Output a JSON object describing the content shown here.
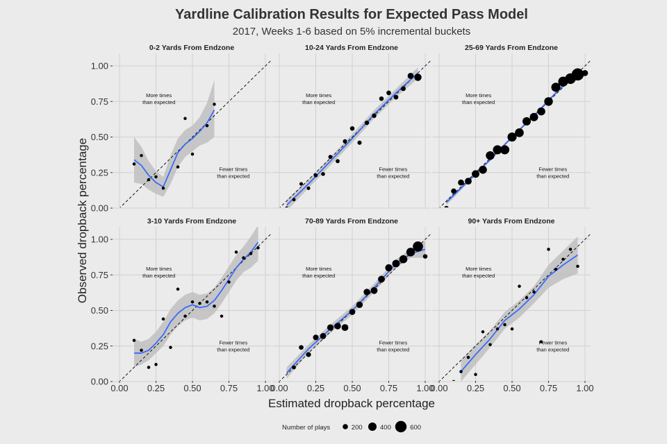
{
  "chart_data": {
    "type": "scatter",
    "title": "Yardline Calibration Results for Expected Pass Model",
    "subtitle": "2017, Weeks 1-6 based on 5% incremental buckets",
    "xlabel": "Estimated dropback percentage",
    "ylabel": "Observed dropback percentage",
    "xlim": [
      0,
      1
    ],
    "ylim": [
      0,
      1
    ],
    "ticks": [
      {
        "value": 0.0,
        "label": "0.00"
      },
      {
        "value": 0.25,
        "label": "0.25"
      },
      {
        "value": 0.5,
        "label": "0.50"
      },
      {
        "value": 0.75,
        "label": "0.75"
      },
      {
        "value": 1.0,
        "label": "1.00"
      }
    ],
    "grid": true,
    "annotations": {
      "above": [
        "More times",
        "than expected"
      ],
      "below": [
        "Fewer times",
        "than expected"
      ]
    },
    "legend": {
      "title": "Number of plays",
      "position": "bottom",
      "entries": [
        {
          "label": "200",
          "value": 200
        },
        {
          "label": "400",
          "value": 400
        },
        {
          "label": "600",
          "value": 600
        }
      ]
    },
    "panels": [
      {
        "title": "0-2 Yards From Endzone",
        "points": [
          {
            "x": 0.1,
            "y": 0.31,
            "n": 60
          },
          {
            "x": 0.15,
            "y": 0.37,
            "n": 60
          },
          {
            "x": 0.2,
            "y": 0.2,
            "n": 60
          },
          {
            "x": 0.25,
            "y": 0.22,
            "n": 60
          },
          {
            "x": 0.3,
            "y": 0.14,
            "n": 60
          },
          {
            "x": 0.4,
            "y": 0.29,
            "n": 60
          },
          {
            "x": 0.45,
            "y": 0.63,
            "n": 60
          },
          {
            "x": 0.5,
            "y": 0.38,
            "n": 60
          },
          {
            "x": 0.6,
            "y": 0.58,
            "n": 60
          },
          {
            "x": 0.65,
            "y": 0.73,
            "n": 60
          }
        ],
        "smooth": [
          {
            "x": 0.1,
            "y": 0.34,
            "lo": 0.18,
            "hi": 0.5
          },
          {
            "x": 0.15,
            "y": 0.3,
            "lo": 0.17,
            "hi": 0.43
          },
          {
            "x": 0.2,
            "y": 0.23,
            "lo": 0.13,
            "hi": 0.33
          },
          {
            "x": 0.25,
            "y": 0.18,
            "lo": 0.1,
            "hi": 0.26
          },
          {
            "x": 0.3,
            "y": 0.15,
            "lo": 0.08,
            "hi": 0.22
          },
          {
            "x": 0.35,
            "y": 0.27,
            "lo": 0.17,
            "hi": 0.37
          },
          {
            "x": 0.4,
            "y": 0.39,
            "lo": 0.29,
            "hi": 0.49
          },
          {
            "x": 0.45,
            "y": 0.45,
            "lo": 0.36,
            "hi": 0.55
          },
          {
            "x": 0.5,
            "y": 0.49,
            "lo": 0.4,
            "hi": 0.58
          },
          {
            "x": 0.55,
            "y": 0.54,
            "lo": 0.44,
            "hi": 0.64
          },
          {
            "x": 0.6,
            "y": 0.6,
            "lo": 0.46,
            "hi": 0.74
          },
          {
            "x": 0.65,
            "y": 0.69,
            "lo": 0.5,
            "hi": 0.9
          }
        ]
      },
      {
        "title": "10-24 Yards From Endzone",
        "points": [
          {
            "x": 0.05,
            "y": 0.0,
            "n": 80
          },
          {
            "x": 0.1,
            "y": 0.06,
            "n": 80
          },
          {
            "x": 0.15,
            "y": 0.17,
            "n": 90
          },
          {
            "x": 0.2,
            "y": 0.14,
            "n": 90
          },
          {
            "x": 0.25,
            "y": 0.23,
            "n": 110
          },
          {
            "x": 0.3,
            "y": 0.24,
            "n": 110
          },
          {
            "x": 0.35,
            "y": 0.36,
            "n": 120
          },
          {
            "x": 0.4,
            "y": 0.33,
            "n": 120
          },
          {
            "x": 0.45,
            "y": 0.47,
            "n": 130
          },
          {
            "x": 0.5,
            "y": 0.56,
            "n": 150
          },
          {
            "x": 0.55,
            "y": 0.46,
            "n": 130
          },
          {
            "x": 0.6,
            "y": 0.6,
            "n": 150
          },
          {
            "x": 0.65,
            "y": 0.65,
            "n": 150
          },
          {
            "x": 0.7,
            "y": 0.77,
            "n": 150
          },
          {
            "x": 0.75,
            "y": 0.81,
            "n": 160
          },
          {
            "x": 0.8,
            "y": 0.78,
            "n": 160
          },
          {
            "x": 0.85,
            "y": 0.84,
            "n": 170
          },
          {
            "x": 0.9,
            "y": 0.93,
            "n": 250
          },
          {
            "x": 0.95,
            "y": 0.92,
            "n": 330
          }
        ],
        "smooth": [
          {
            "x": 0.05,
            "y": 0.02,
            "lo": -0.02,
            "hi": 0.06
          },
          {
            "x": 0.2,
            "y": 0.17,
            "lo": 0.14,
            "hi": 0.2
          },
          {
            "x": 0.35,
            "y": 0.33,
            "lo": 0.3,
            "hi": 0.36
          },
          {
            "x": 0.5,
            "y": 0.49,
            "lo": 0.46,
            "hi": 0.52
          },
          {
            "x": 0.65,
            "y": 0.66,
            "lo": 0.63,
            "hi": 0.69
          },
          {
            "x": 0.8,
            "y": 0.81,
            "lo": 0.78,
            "hi": 0.84
          },
          {
            "x": 0.95,
            "y": 0.95,
            "lo": 0.91,
            "hi": 0.99
          }
        ]
      },
      {
        "title": "25-69 Yards From Endzone",
        "points": [
          {
            "x": 0.05,
            "y": 0.0,
            "n": 150
          },
          {
            "x": 0.1,
            "y": 0.12,
            "n": 200
          },
          {
            "x": 0.15,
            "y": 0.18,
            "n": 250
          },
          {
            "x": 0.2,
            "y": 0.19,
            "n": 300
          },
          {
            "x": 0.25,
            "y": 0.24,
            "n": 350
          },
          {
            "x": 0.3,
            "y": 0.27,
            "n": 380
          },
          {
            "x": 0.35,
            "y": 0.37,
            "n": 420
          },
          {
            "x": 0.4,
            "y": 0.41,
            "n": 450
          },
          {
            "x": 0.45,
            "y": 0.41,
            "n": 450
          },
          {
            "x": 0.5,
            "y": 0.5,
            "n": 450
          },
          {
            "x": 0.55,
            "y": 0.53,
            "n": 430
          },
          {
            "x": 0.6,
            "y": 0.61,
            "n": 400
          },
          {
            "x": 0.65,
            "y": 0.64,
            "n": 400
          },
          {
            "x": 0.7,
            "y": 0.68,
            "n": 380
          },
          {
            "x": 0.75,
            "y": 0.75,
            "n": 420
          },
          {
            "x": 0.8,
            "y": 0.85,
            "n": 450
          },
          {
            "x": 0.85,
            "y": 0.89,
            "n": 500
          },
          {
            "x": 0.9,
            "y": 0.91,
            "n": 550
          },
          {
            "x": 0.95,
            "y": 0.94,
            "n": 650
          },
          {
            "x": 1.0,
            "y": 0.95,
            "n": 250
          }
        ],
        "smooth": [
          {
            "x": 0.05,
            "y": 0.04,
            "lo": 0.02,
            "hi": 0.06
          },
          {
            "x": 0.2,
            "y": 0.19,
            "lo": 0.18,
            "hi": 0.2
          },
          {
            "x": 0.35,
            "y": 0.34,
            "lo": 0.33,
            "hi": 0.35
          },
          {
            "x": 0.5,
            "y": 0.5,
            "lo": 0.49,
            "hi": 0.51
          },
          {
            "x": 0.65,
            "y": 0.65,
            "lo": 0.64,
            "hi": 0.66
          },
          {
            "x": 0.8,
            "y": 0.81,
            "lo": 0.8,
            "hi": 0.82
          },
          {
            "x": 0.95,
            "y": 0.96,
            "lo": 0.94,
            "hi": 0.98
          }
        ]
      },
      {
        "title": "3-10 Yards From Endzone",
        "points": [
          {
            "x": 0.1,
            "y": 0.29,
            "n": 60
          },
          {
            "x": 0.15,
            "y": 0.22,
            "n": 60
          },
          {
            "x": 0.2,
            "y": 0.1,
            "n": 60
          },
          {
            "x": 0.25,
            "y": 0.12,
            "n": 60
          },
          {
            "x": 0.3,
            "y": 0.44,
            "n": 60
          },
          {
            "x": 0.35,
            "y": 0.24,
            "n": 60
          },
          {
            "x": 0.4,
            "y": 0.65,
            "n": 60
          },
          {
            "x": 0.45,
            "y": 0.46,
            "n": 60
          },
          {
            "x": 0.5,
            "y": 0.56,
            "n": 60
          },
          {
            "x": 0.55,
            "y": 0.55,
            "n": 60
          },
          {
            "x": 0.6,
            "y": 0.56,
            "n": 60
          },
          {
            "x": 0.65,
            "y": 0.53,
            "n": 60
          },
          {
            "x": 0.7,
            "y": 0.46,
            "n": 60
          },
          {
            "x": 0.75,
            "y": 0.7,
            "n": 60
          },
          {
            "x": 0.8,
            "y": 0.91,
            "n": 60
          },
          {
            "x": 0.85,
            "y": 0.87,
            "n": 60
          },
          {
            "x": 0.9,
            "y": 0.9,
            "n": 60
          },
          {
            "x": 0.95,
            "y": 0.94,
            "n": 60
          }
        ],
        "smooth": [
          {
            "x": 0.1,
            "y": 0.2,
            "lo": 0.1,
            "hi": 0.3
          },
          {
            "x": 0.15,
            "y": 0.2,
            "lo": 0.12,
            "hi": 0.28
          },
          {
            "x": 0.2,
            "y": 0.22,
            "lo": 0.15,
            "hi": 0.3
          },
          {
            "x": 0.25,
            "y": 0.27,
            "lo": 0.2,
            "hi": 0.35
          },
          {
            "x": 0.3,
            "y": 0.33,
            "lo": 0.25,
            "hi": 0.42
          },
          {
            "x": 0.35,
            "y": 0.42,
            "lo": 0.33,
            "hi": 0.51
          },
          {
            "x": 0.4,
            "y": 0.48,
            "lo": 0.39,
            "hi": 0.57
          },
          {
            "x": 0.45,
            "y": 0.52,
            "lo": 0.43,
            "hi": 0.61
          },
          {
            "x": 0.5,
            "y": 0.54,
            "lo": 0.45,
            "hi": 0.63
          },
          {
            "x": 0.55,
            "y": 0.52,
            "lo": 0.43,
            "hi": 0.61
          },
          {
            "x": 0.6,
            "y": 0.53,
            "lo": 0.44,
            "hi": 0.62
          },
          {
            "x": 0.65,
            "y": 0.57,
            "lo": 0.48,
            "hi": 0.66
          },
          {
            "x": 0.7,
            "y": 0.64,
            "lo": 0.55,
            "hi": 0.73
          },
          {
            "x": 0.75,
            "y": 0.72,
            "lo": 0.63,
            "hi": 0.81
          },
          {
            "x": 0.8,
            "y": 0.8,
            "lo": 0.71,
            "hi": 0.89
          },
          {
            "x": 0.85,
            "y": 0.86,
            "lo": 0.77,
            "hi": 0.95
          },
          {
            "x": 0.9,
            "y": 0.91,
            "lo": 0.8,
            "hi": 1.02
          },
          {
            "x": 0.95,
            "y": 0.98,
            "lo": 0.85,
            "hi": 1.1
          }
        ]
      },
      {
        "title": "70-89 Yards From Endzone",
        "points": [
          {
            "x": 0.1,
            "y": 0.1,
            "n": 120
          },
          {
            "x": 0.15,
            "y": 0.24,
            "n": 160
          },
          {
            "x": 0.2,
            "y": 0.19,
            "n": 180
          },
          {
            "x": 0.25,
            "y": 0.31,
            "n": 220
          },
          {
            "x": 0.3,
            "y": 0.32,
            "n": 250
          },
          {
            "x": 0.35,
            "y": 0.38,
            "n": 270
          },
          {
            "x": 0.4,
            "y": 0.39,
            "n": 280
          },
          {
            "x": 0.45,
            "y": 0.38,
            "n": 300
          },
          {
            "x": 0.5,
            "y": 0.49,
            "n": 250
          },
          {
            "x": 0.55,
            "y": 0.54,
            "n": 280
          },
          {
            "x": 0.6,
            "y": 0.63,
            "n": 280
          },
          {
            "x": 0.65,
            "y": 0.64,
            "n": 300
          },
          {
            "x": 0.7,
            "y": 0.72,
            "n": 300
          },
          {
            "x": 0.75,
            "y": 0.8,
            "n": 320
          },
          {
            "x": 0.8,
            "y": 0.83,
            "n": 350
          },
          {
            "x": 0.85,
            "y": 0.86,
            "n": 380
          },
          {
            "x": 0.9,
            "y": 0.91,
            "n": 420
          },
          {
            "x": 0.95,
            "y": 0.95,
            "n": 520
          },
          {
            "x": 1.0,
            "y": 0.88,
            "n": 150
          }
        ],
        "smooth": [
          {
            "x": 0.05,
            "y": 0.06,
            "lo": 0.02,
            "hi": 0.1
          },
          {
            "x": 0.2,
            "y": 0.23,
            "lo": 0.2,
            "hi": 0.26
          },
          {
            "x": 0.35,
            "y": 0.37,
            "lo": 0.34,
            "hi": 0.4
          },
          {
            "x": 0.5,
            "y": 0.5,
            "lo": 0.47,
            "hi": 0.53
          },
          {
            "x": 0.65,
            "y": 0.66,
            "lo": 0.63,
            "hi": 0.69
          },
          {
            "x": 0.8,
            "y": 0.83,
            "lo": 0.8,
            "hi": 0.86
          },
          {
            "x": 0.9,
            "y": 0.9,
            "lo": 0.87,
            "hi": 0.93
          },
          {
            "x": 1.0,
            "y": 0.93,
            "lo": 0.87,
            "hi": 0.99
          }
        ]
      },
      {
        "title": "90+ Yards From Endzone",
        "points": [
          {
            "x": 0.1,
            "y": 0.0,
            "n": 60
          },
          {
            "x": 0.15,
            "y": 0.07,
            "n": 60
          },
          {
            "x": 0.2,
            "y": 0.17,
            "n": 60
          },
          {
            "x": 0.25,
            "y": 0.05,
            "n": 60
          },
          {
            "x": 0.3,
            "y": 0.35,
            "n": 60
          },
          {
            "x": 0.35,
            "y": 0.26,
            "n": 60
          },
          {
            "x": 0.4,
            "y": 0.37,
            "n": 60
          },
          {
            "x": 0.45,
            "y": 0.4,
            "n": 60
          },
          {
            "x": 0.5,
            "y": 0.37,
            "n": 60
          },
          {
            "x": 0.55,
            "y": 0.67,
            "n": 60
          },
          {
            "x": 0.6,
            "y": 0.59,
            "n": 60
          },
          {
            "x": 0.65,
            "y": 0.63,
            "n": 60
          },
          {
            "x": 0.7,
            "y": 0.28,
            "n": 60
          },
          {
            "x": 0.75,
            "y": 0.93,
            "n": 60
          },
          {
            "x": 0.8,
            "y": 0.79,
            "n": 60
          },
          {
            "x": 0.85,
            "y": 0.86,
            "n": 60
          },
          {
            "x": 0.9,
            "y": 0.93,
            "n": 60
          },
          {
            "x": 0.95,
            "y": 0.81,
            "n": 60
          }
        ],
        "smooth": [
          {
            "x": 0.15,
            "y": 0.07,
            "lo": 0.0,
            "hi": 0.15
          },
          {
            "x": 0.25,
            "y": 0.19,
            "lo": 0.12,
            "hi": 0.26
          },
          {
            "x": 0.35,
            "y": 0.3,
            "lo": 0.24,
            "hi": 0.36
          },
          {
            "x": 0.45,
            "y": 0.43,
            "lo": 0.37,
            "hi": 0.49
          },
          {
            "x": 0.55,
            "y": 0.51,
            "lo": 0.45,
            "hi": 0.57
          },
          {
            "x": 0.65,
            "y": 0.61,
            "lo": 0.55,
            "hi": 0.67
          },
          {
            "x": 0.75,
            "y": 0.74,
            "lo": 0.66,
            "hi": 0.82
          },
          {
            "x": 0.85,
            "y": 0.82,
            "lo": 0.72,
            "hi": 0.92
          },
          {
            "x": 0.95,
            "y": 0.89,
            "lo": 0.76,
            "hi": 1.02
          }
        ]
      }
    ]
  },
  "colors": {
    "background": "#ebebeb",
    "grid": "#d0d0d0",
    "ribbon": "#bdbdbd",
    "smooth_line": "#3366ff",
    "points": "#000000",
    "text": "#333333"
  }
}
